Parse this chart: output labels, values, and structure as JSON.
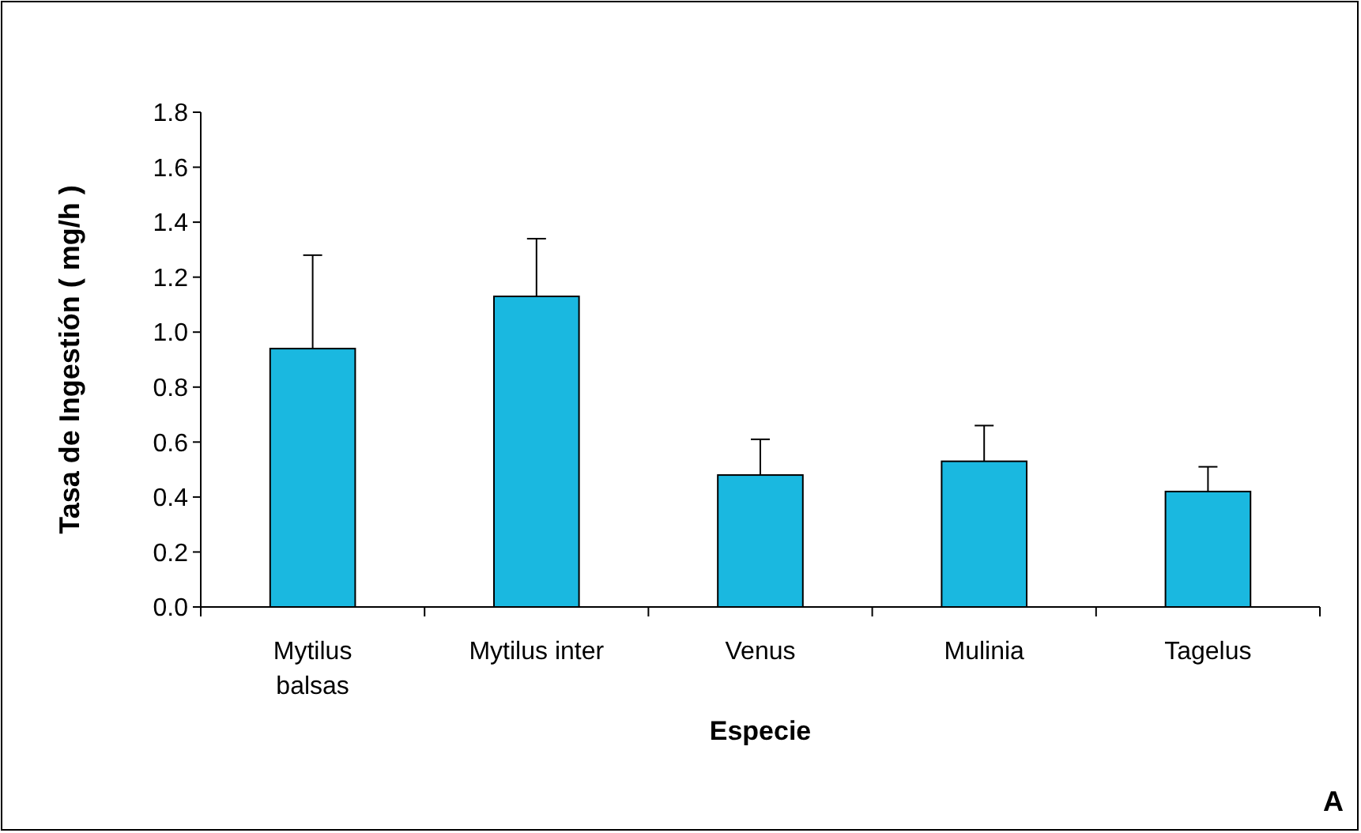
{
  "chart_data": {
    "type": "bar",
    "xlabel": "Especie",
    "ylabel": "Tasa de Ingestión ( mg/h )",
    "categories": [
      "Mytilus balsas",
      "Mytilus inter",
      "Venus",
      "Mulinia",
      "Tagelus"
    ],
    "values": [
      0.94,
      1.13,
      0.48,
      0.53,
      0.42
    ],
    "errors": [
      [
        0.94,
        1.28
      ],
      [
        1.13,
        1.34
      ],
      [
        0.48,
        0.61
      ],
      [
        0.53,
        0.66
      ],
      [
        0.42,
        0.51
      ]
    ],
    "color": "#1ab8e0",
    "ylim": [
      0,
      1.8
    ],
    "yticks": [
      {
        "value": 0,
        "label": "0.0"
      },
      {
        "value": 0.2,
        "label": "0.2"
      },
      {
        "value": 0.4,
        "label": "0.4"
      },
      {
        "value": 0.6,
        "label": "0.6"
      },
      {
        "value": 0.8,
        "label": "0.8"
      },
      {
        "value": 1,
        "label": "1.0"
      },
      {
        "value": 1.2,
        "label": "1.2"
      },
      {
        "value": 1.4,
        "label": "1.4"
      },
      {
        "value": 1.6,
        "label": "1.6"
      },
      {
        "value": 1.8,
        "label": "1.8"
      }
    ],
    "grid": false,
    "annotations": [
      "A"
    ]
  }
}
